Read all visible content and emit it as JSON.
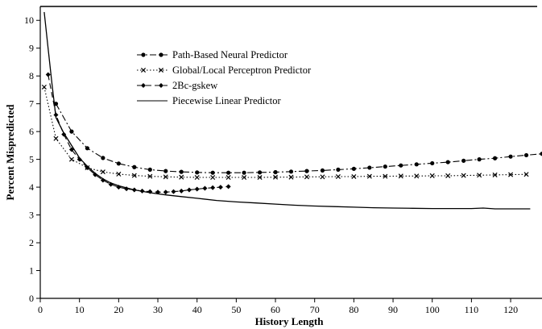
{
  "chart_data": {
    "type": "line",
    "xlabel": "History Length",
    "ylabel": "Percent Mispredicted",
    "xlim": [
      0,
      128
    ],
    "ylim": [
      0,
      10.5
    ],
    "x_ticks": [
      0,
      10,
      20,
      30,
      40,
      50,
      60,
      70,
      80,
      90,
      100,
      110,
      120
    ],
    "y_ticks": [
      0,
      1,
      2,
      3,
      4,
      5,
      6,
      7,
      8,
      9,
      10
    ],
    "grid": false,
    "legend_position": "top-left",
    "series": [
      {
        "name": "Path-Based Neural Predictor",
        "line": "dash-dot",
        "marker": "circle",
        "points": [
          [
            4,
            7.0
          ],
          [
            8,
            6.0
          ],
          [
            12,
            5.4
          ],
          [
            16,
            5.05
          ],
          [
            20,
            4.85
          ],
          [
            24,
            4.72
          ],
          [
            28,
            4.63
          ],
          [
            32,
            4.58
          ],
          [
            36,
            4.55
          ],
          [
            40,
            4.53
          ],
          [
            44,
            4.52
          ],
          [
            48,
            4.52
          ],
          [
            52,
            4.52
          ],
          [
            56,
            4.53
          ],
          [
            60,
            4.54
          ],
          [
            64,
            4.56
          ],
          [
            68,
            4.58
          ],
          [
            72,
            4.6
          ],
          [
            76,
            4.63
          ],
          [
            80,
            4.66
          ],
          [
            84,
            4.7
          ],
          [
            88,
            4.74
          ],
          [
            92,
            4.78
          ],
          [
            96,
            4.82
          ],
          [
            100,
            4.86
          ],
          [
            104,
            4.9
          ],
          [
            108,
            4.95
          ],
          [
            112,
            5.0
          ],
          [
            116,
            5.04
          ],
          [
            120,
            5.1
          ],
          [
            124,
            5.15
          ],
          [
            128,
            5.2
          ]
        ]
      },
      {
        "name": "Global/Local Perceptron Predictor",
        "line": "dotted",
        "marker": "cross",
        "points": [
          [
            1,
            7.6
          ],
          [
            4,
            5.75
          ],
          [
            8,
            5.0
          ],
          [
            12,
            4.7
          ],
          [
            16,
            4.55
          ],
          [
            20,
            4.47
          ],
          [
            24,
            4.42
          ],
          [
            28,
            4.39
          ],
          [
            32,
            4.37
          ],
          [
            36,
            4.36
          ],
          [
            40,
            4.35
          ],
          [
            44,
            4.35
          ],
          [
            48,
            4.35
          ],
          [
            52,
            4.35
          ],
          [
            56,
            4.35
          ],
          [
            60,
            4.36
          ],
          [
            64,
            4.36
          ],
          [
            68,
            4.37
          ],
          [
            72,
            4.37
          ],
          [
            76,
            4.38
          ],
          [
            80,
            4.38
          ],
          [
            84,
            4.39
          ],
          [
            88,
            4.39
          ],
          [
            92,
            4.4
          ],
          [
            96,
            4.4
          ],
          [
            100,
            4.41
          ],
          [
            104,
            4.41
          ],
          [
            108,
            4.42
          ],
          [
            112,
            4.43
          ],
          [
            116,
            4.44
          ],
          [
            120,
            4.45
          ],
          [
            124,
            4.46
          ]
        ]
      },
      {
        "name": "2Bc-gskew",
        "line": "dashed",
        "marker": "diamond",
        "points": [
          [
            2,
            8.05
          ],
          [
            4,
            6.6
          ],
          [
            6,
            5.9
          ],
          [
            8,
            5.35
          ],
          [
            10,
            5.0
          ],
          [
            12,
            4.7
          ],
          [
            14,
            4.45
          ],
          [
            16,
            4.25
          ],
          [
            18,
            4.1
          ],
          [
            20,
            4.0
          ],
          [
            22,
            3.94
          ],
          [
            24,
            3.9
          ],
          [
            26,
            3.86
          ],
          [
            28,
            3.84
          ],
          [
            30,
            3.82
          ],
          [
            32,
            3.82
          ],
          [
            34,
            3.84
          ],
          [
            36,
            3.86
          ],
          [
            38,
            3.9
          ],
          [
            40,
            3.93
          ],
          [
            42,
            3.96
          ],
          [
            44,
            3.98
          ],
          [
            46,
            4.0
          ],
          [
            48,
            4.02
          ]
        ]
      },
      {
        "name": "Piecewise Linear Predictor",
        "line": "solid",
        "marker": "none",
        "points": [
          [
            1,
            10.3
          ],
          [
            2,
            9.0
          ],
          [
            3,
            7.7
          ],
          [
            4,
            6.5
          ],
          [
            6,
            5.95
          ],
          [
            8,
            5.5
          ],
          [
            10,
            5.05
          ],
          [
            12,
            4.75
          ],
          [
            14,
            4.5
          ],
          [
            16,
            4.3
          ],
          [
            18,
            4.15
          ],
          [
            20,
            4.05
          ],
          [
            24,
            3.9
          ],
          [
            28,
            3.8
          ],
          [
            32,
            3.72
          ],
          [
            36,
            3.66
          ],
          [
            40,
            3.6
          ],
          [
            45,
            3.52
          ],
          [
            50,
            3.47
          ],
          [
            55,
            3.43
          ],
          [
            60,
            3.39
          ],
          [
            65,
            3.35
          ],
          [
            70,
            3.32
          ],
          [
            75,
            3.3
          ],
          [
            80,
            3.28
          ],
          [
            85,
            3.26
          ],
          [
            90,
            3.25
          ],
          [
            95,
            3.24
          ],
          [
            100,
            3.23
          ],
          [
            105,
            3.23
          ],
          [
            110,
            3.23
          ],
          [
            113,
            3.25
          ],
          [
            116,
            3.22
          ],
          [
            120,
            3.22
          ],
          [
            125,
            3.22
          ]
        ]
      }
    ]
  }
}
